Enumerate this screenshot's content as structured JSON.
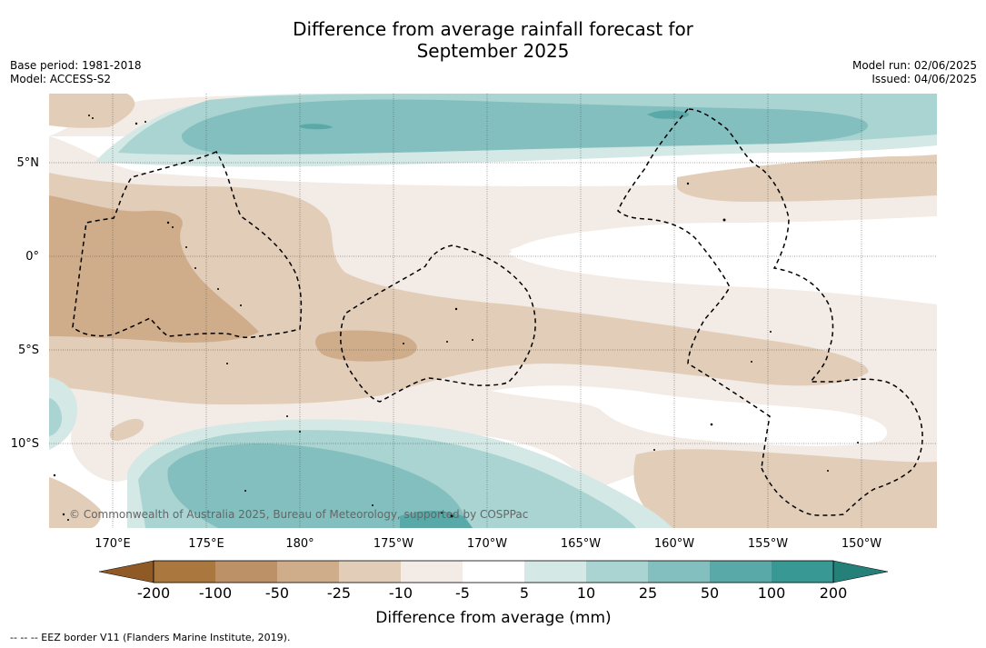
{
  "header": {
    "title_line1": "Difference from average rainfall forecast for",
    "title_line2": "September 2025",
    "base_period": "Base period: 1981-2018",
    "model": "Model: ACCESS-S2",
    "model_run": "Model run: 02/06/2025",
    "issued": "Issued: 04/06/2025"
  },
  "map": {
    "lat_labels": [
      "5°N",
      "0°",
      "5°S",
      "10°S"
    ],
    "lon_labels": [
      "170°E",
      "175°E",
      "180°",
      "175°W",
      "170°W",
      "165°W",
      "160°W",
      "155°W",
      "150°W"
    ],
    "copyright": "© Commonwealth of Australia 2025, Bureau of Meteorology, supported by COSPPac"
  },
  "colorbar": {
    "ticks": [
      "-200",
      "-100",
      "-50",
      "-25",
      "-10",
      "-5",
      "5",
      "10",
      "25",
      "50",
      "100",
      "200"
    ],
    "colors": [
      "#aa773e",
      "#bd9168",
      "#cfad8b",
      "#e2cdb9",
      "#f3ebe5",
      "#ffffff",
      "#d4e8e5",
      "#a9d4d2",
      "#82bfbe",
      "#58a9a7",
      "#379894"
    ],
    "under_color": "#8f5a26",
    "over_color": "#26807a",
    "title": "Difference from average (mm)"
  },
  "footer": {
    "legend": "--  --  -- EEZ border V11 (Flanders Marine Institute, 2019)."
  }
}
